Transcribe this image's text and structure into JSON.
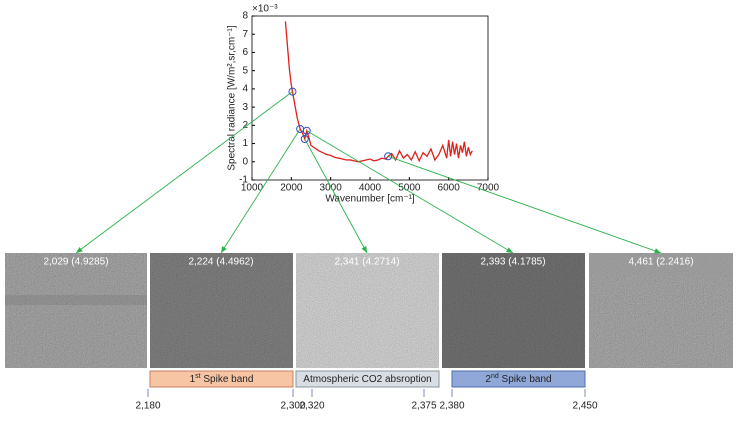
{
  "chart_data": {
    "type": "line",
    "x_label": "Wavenumber [cm⁻¹]",
    "y_label": "Spectral radiance [W/m²,sr,cm⁻¹]",
    "y_multiplier": "×10⁻³",
    "xlim": [
      1000,
      7000
    ],
    "xticks": [
      1000,
      2000,
      3000,
      4000,
      5000,
      6000,
      7000
    ],
    "ylim": [
      -1,
      8
    ],
    "yticks": [
      -1,
      0,
      1,
      2,
      3,
      4,
      5,
      6,
      7,
      8
    ],
    "x": [
      1850,
      1900,
      1950,
      2000,
      2029,
      2100,
      2150,
      2224,
      2300,
      2341,
      2393,
      2450,
      2500,
      2600,
      2700,
      2800,
      2900,
      3000,
      3100,
      3200,
      3300,
      3400,
      3500,
      3600,
      3700,
      3800,
      3900,
      4000,
      4100,
      4200,
      4300,
      4400,
      4461,
      4550,
      4650,
      4750,
      4850,
      4950,
      5050,
      5150,
      5250,
      5350,
      5450,
      5550,
      5650,
      5750,
      5850,
      5950,
      6000,
      6050,
      6100,
      6150,
      6200,
      6250,
      6300,
      6350,
      6400,
      6450,
      6500,
      6550,
      6600
    ],
    "series": [
      {
        "name": "Spectral radiance",
        "color": "#e0201b",
        "values": [
          7.7,
          6.4,
          5.1,
          4.2,
          3.85,
          3.0,
          2.4,
          1.8,
          1.5,
          1.25,
          1.7,
          1.3,
          0.9,
          0.75,
          0.6,
          0.5,
          0.4,
          0.35,
          0.25,
          0.2,
          0.15,
          0.1,
          0.1,
          0.05,
          0.0,
          0.05,
          0.1,
          0.15,
          0.05,
          0.1,
          0.2,
          0.15,
          0.3,
          0.45,
          0.1,
          0.6,
          0.2,
          0.4,
          0.1,
          0.55,
          0.05,
          0.5,
          0.3,
          0.7,
          0.1,
          0.4,
          0.9,
          0.2,
          1.2,
          0.3,
          1.1,
          0.4,
          1.0,
          0.2,
          0.9,
          0.5,
          1.1,
          0.3,
          0.8,
          0.4,
          0.6
        ]
      }
    ],
    "points": {
      "color": "#2f4fc4",
      "x": [
        2029,
        2224,
        2341,
        2393,
        4461
      ],
      "y": [
        3.85,
        1.8,
        1.25,
        1.7,
        0.3
      ]
    },
    "grid": false
  },
  "panels": [
    "2,029 (4.9285)",
    "2,224 (4.4962)",
    "2,341 (4.2714)",
    "2,393 (4.1785)",
    "4,461 (2.2416)"
  ],
  "bands": [
    {
      "ordinal": "1",
      "suffix": "st",
      "text": " Spike band",
      "from": "2,180",
      "to": "2,300"
    },
    {
      "text": "Atmospheric CO2 absroption",
      "from": "2,320",
      "to": "2,375"
    },
    {
      "ordinal": "2",
      "suffix": "nd",
      "text": " Spike band",
      "from": "2,380",
      "to": "2,450"
    }
  ]
}
